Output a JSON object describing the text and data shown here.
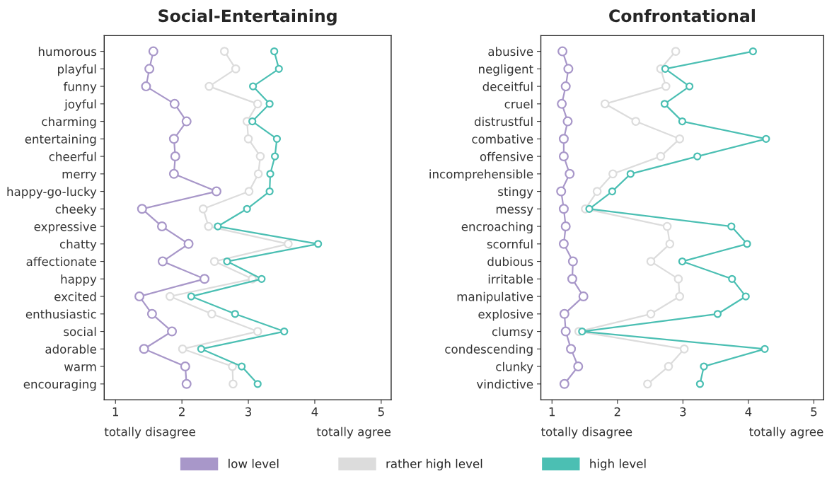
{
  "chart_data": [
    {
      "type": "line",
      "orientation": "horizontal",
      "title": "Social-Entertaining",
      "marker": "circle",
      "legend": "bottom",
      "grid": false,
      "categories": [
        "humorous",
        "playful",
        "funny",
        "joyful",
        "charming",
        "entertaining",
        "cheerful",
        "merry",
        "happy-go-lucky",
        "cheeky",
        "expressive",
        "chatty",
        "affectionate",
        "happy",
        "excited",
        "enthusiastic",
        "social",
        "adorable",
        "warm",
        "encouraging"
      ],
      "xlim": [
        0.83,
        5.15
      ],
      "xticks": [
        1,
        2,
        3,
        4,
        5
      ],
      "annotations": [
        "totally disagree",
        "totally agree"
      ],
      "series": [
        {
          "name": "low level",
          "color": "#a897c9",
          "values": [
            1.57,
            1.51,
            1.46,
            1.89,
            2.07,
            1.88,
            1.9,
            1.88,
            2.52,
            1.4,
            1.7,
            2.1,
            1.71,
            2.34,
            1.36,
            1.55,
            1.85,
            1.43,
            2.05,
            2.07
          ]
        },
        {
          "name": "rather high level",
          "color": "#dcdcdc",
          "values": [
            2.64,
            2.81,
            2.41,
            3.14,
            2.98,
            3.0,
            3.18,
            3.15,
            3.01,
            2.32,
            2.4,
            3.6,
            2.49,
            3.06,
            1.82,
            2.45,
            3.14,
            2.01,
            2.76,
            2.77
          ]
        },
        {
          "name": "high level",
          "color": "#4bbfb3",
          "values": [
            3.39,
            3.46,
            3.07,
            3.32,
            3.06,
            3.43,
            3.4,
            3.33,
            3.32,
            2.98,
            2.54,
            4.05,
            2.68,
            3.2,
            2.14,
            2.8,
            3.54,
            2.29,
            2.9,
            3.14
          ]
        }
      ]
    },
    {
      "type": "line",
      "orientation": "horizontal",
      "title": "Confrontational",
      "marker": "circle",
      "grid": false,
      "categories": [
        "abusive",
        "negligent",
        "deceitful",
        "cruel",
        "distrustful",
        "combative",
        "offensive",
        "incomprehensible",
        "stingy",
        "messy",
        "encroaching",
        "scornful",
        "dubious",
        "irritable",
        "manipulative",
        "explosive",
        "clumsy",
        "condescending",
        "clunky",
        "vindictive"
      ],
      "xlim": [
        0.83,
        5.15
      ],
      "xticks": [
        1,
        2,
        3,
        4,
        5
      ],
      "annotations": [
        "totally disagree",
        "totally agree"
      ],
      "series": [
        {
          "color": "#a897c9",
          "values": [
            1.16,
            1.25,
            1.21,
            1.15,
            1.24,
            1.18,
            1.18,
            1.27,
            1.14,
            1.18,
            1.21,
            1.18,
            1.32,
            1.31,
            1.48,
            1.19,
            1.21,
            1.29,
            1.4,
            1.19
          ]
        },
        {
          "color": "#dcdcdc",
          "values": [
            2.89,
            2.66,
            2.74,
            1.81,
            2.28,
            2.95,
            2.66,
            1.93,
            1.69,
            1.51,
            2.76,
            2.8,
            2.51,
            2.93,
            2.95,
            2.51,
            1.41,
            3.02,
            2.78,
            2.46
          ]
        },
        {
          "color": "#4bbfb3",
          "values": [
            4.07,
            2.73,
            3.1,
            2.72,
            2.99,
            4.27,
            3.22,
            2.2,
            1.92,
            1.57,
            3.74,
            3.98,
            2.99,
            3.75,
            3.96,
            3.53,
            1.46,
            4.25,
            3.32,
            3.26
          ]
        }
      ]
    }
  ]
}
